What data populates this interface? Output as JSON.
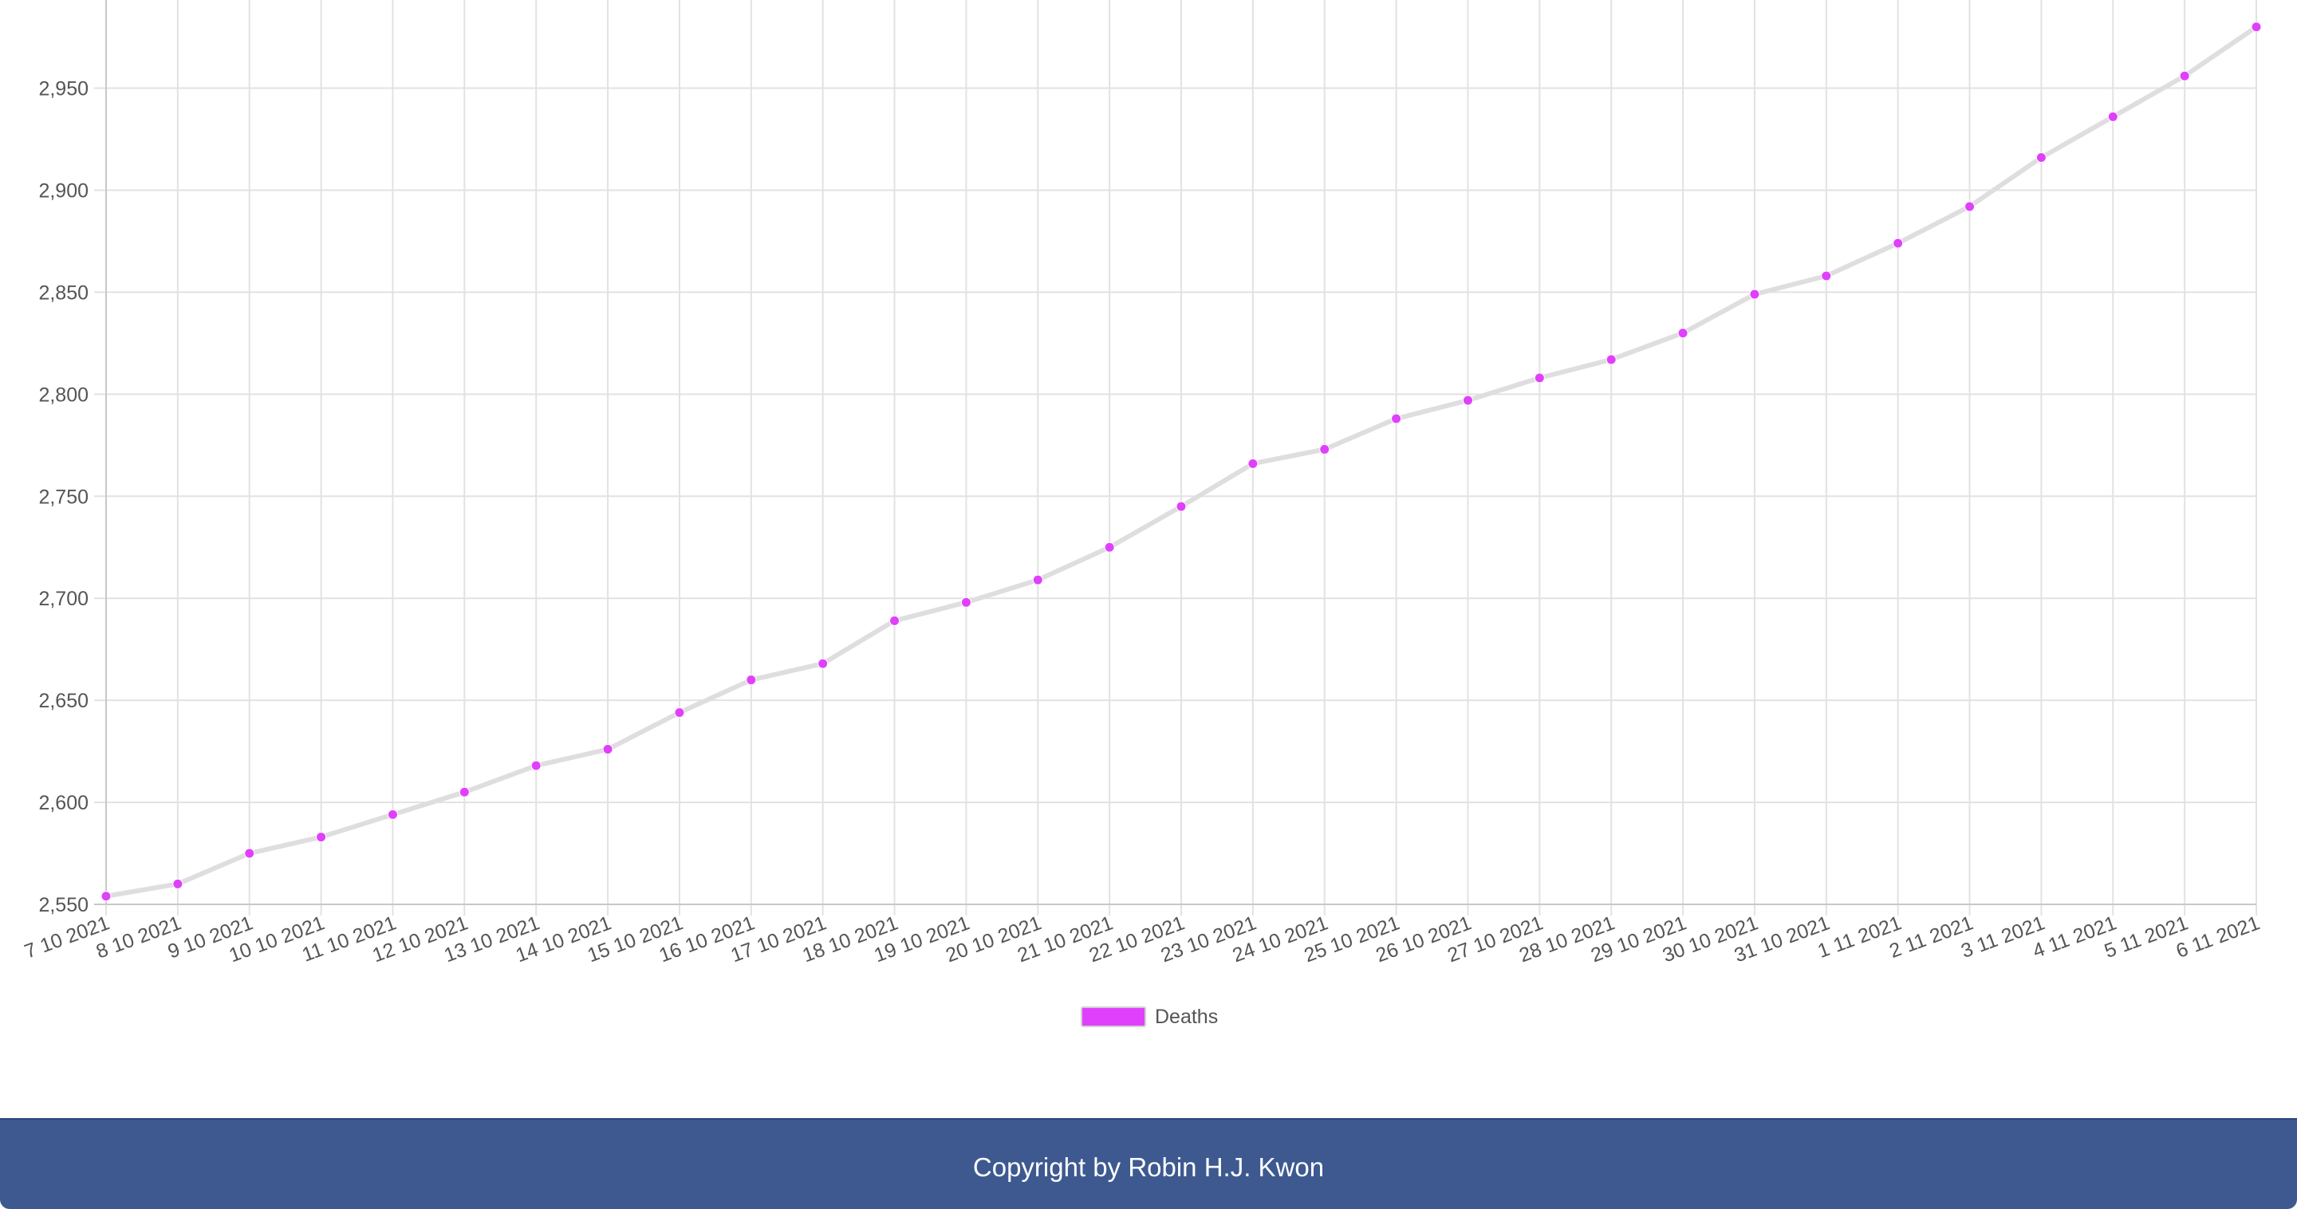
{
  "chart_data": {
    "type": "line",
    "x": [
      "7 10 2021",
      "8 10 2021",
      "9 10 2021",
      "10 10 2021",
      "11 10 2021",
      "12 10 2021",
      "13 10 2021",
      "14 10 2021",
      "15 10 2021",
      "16 10 2021",
      "17 10 2021",
      "18 10 2021",
      "19 10 2021",
      "20 10 2021",
      "21 10 2021",
      "22 10 2021",
      "23 10 2021",
      "24 10 2021",
      "25 10 2021",
      "26 10 2021",
      "27 10 2021",
      "28 10 2021",
      "29 10 2021",
      "30 10 2021",
      "31 10 2021",
      "1 11 2021",
      "2 11 2021",
      "3 11 2021",
      "4 11 2021",
      "5 11 2021",
      "6 11 2021"
    ],
    "series": [
      {
        "name": "Deaths",
        "values": [
          2554,
          2560,
          2575,
          2583,
          2594,
          2605,
          2618,
          2626,
          2644,
          2660,
          2668,
          2689,
          2698,
          2709,
          2725,
          2745,
          2766,
          2773,
          2788,
          2797,
          2808,
          2817,
          2830,
          2849,
          2858,
          2874,
          2892,
          2916,
          2936,
          2956,
          2980
        ],
        "point_color": "#e040fb",
        "line_color": "#e0dde0",
        "legend_fill": "#e040fb",
        "legend_stroke": "#d0d0d0"
      }
    ],
    "y_ticks": [
      "2,550",
      "2,600",
      "2,650",
      "2,700",
      "2,750",
      "2,800",
      "2,850",
      "2,900",
      "2,950"
    ],
    "ylim": [
      2550,
      2985
    ],
    "grid": true,
    "legend_position": "bottom"
  },
  "footer": {
    "copyright": "Copyright by Robin H.J. Kwon",
    "background": "#3d5990"
  }
}
